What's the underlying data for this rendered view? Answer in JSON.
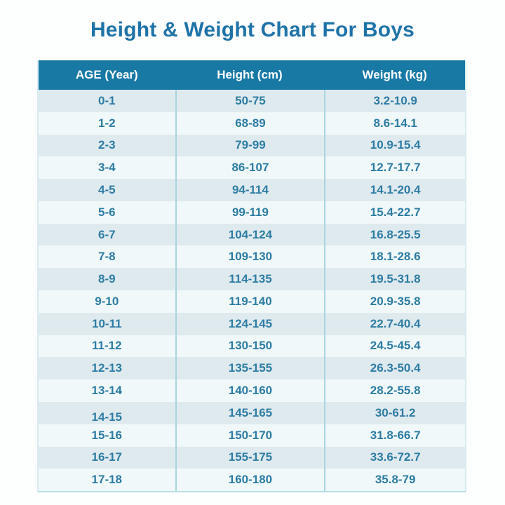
{
  "title": "Height & Weight Chart For Boys",
  "chart_data": {
    "type": "table",
    "title": "Height & Weight Chart For Boys",
    "columns": [
      "AGE (Year)",
      "Height (cm)",
      "Weight (kg)"
    ],
    "rows": [
      [
        "0-1",
        "50-75",
        "3.2-10.9"
      ],
      [
        "1-2",
        "68-89",
        "8.6-14.1"
      ],
      [
        "2-3",
        "79-99",
        "10.9-15.4"
      ],
      [
        "3-4",
        "86-107",
        "12.7-17.7"
      ],
      [
        "4-5",
        "94-114",
        "14.1-20.4"
      ],
      [
        "5-6",
        "99-119",
        "15.4-22.7"
      ],
      [
        "6-7",
        "104-124",
        "16.8-25.5"
      ],
      [
        "7-8",
        "109-130",
        "18.1-28.6"
      ],
      [
        "8-9",
        "114-135",
        "19.5-31.8"
      ],
      [
        "9-10",
        "119-140",
        "20.9-35.8"
      ],
      [
        "10-11",
        "124-145",
        "22.7-40.4"
      ],
      [
        "11-12",
        "130-150",
        "24.5-45.4"
      ],
      [
        "12-13",
        "135-155",
        "26.3-50.4"
      ],
      [
        "13-14",
        "140-160",
        "28.2-55.8"
      ],
      [
        "14-15",
        "145-165",
        "30-61.2"
      ],
      [
        "15-16",
        "150-170",
        "31.8-66.7"
      ],
      [
        "16-17",
        "155-175",
        "33.6-72.7"
      ],
      [
        "17-18",
        "160-180",
        "35.8-79"
      ]
    ],
    "age_label_shifted_down": "14-15"
  },
  "colors": {
    "title_color": "#1e73a8",
    "header_bg": "#1879a5",
    "header_text": "#ffffff",
    "row_even_bg": "#dfeaee",
    "row_odd_bg": "#f0f8fa",
    "cell_text": "#2d7ca3",
    "divider": "#a9d4de",
    "side_border": "#d7ecf1",
    "bottom_border": "#b9dde4",
    "page_bg": "#fdfefe"
  }
}
